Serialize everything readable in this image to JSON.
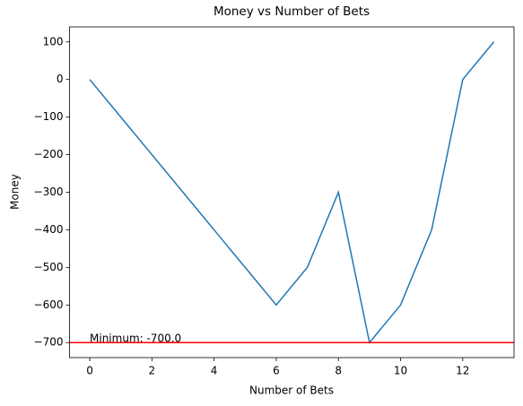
{
  "chart_data": {
    "type": "line",
    "title": "Money vs Number of Bets",
    "x_label": "Number of Bets",
    "y_label": "Money",
    "x": [
      0,
      1,
      2,
      3,
      4,
      5,
      6,
      7,
      8,
      9,
      10,
      11,
      12,
      13
    ],
    "series": [
      {
        "name": "Money",
        "color": "#1f77b4",
        "values": [
          0,
          -100,
          -200,
          -300,
          -400,
          -500,
          -600,
          -500,
          -300,
          -700,
          -600,
          -400,
          0,
          100
        ]
      }
    ],
    "xlim": [
      -0.65,
      13.65
    ],
    "xticks": [
      0,
      2,
      4,
      6,
      8,
      10,
      12
    ],
    "ylim": [
      -740,
      140
    ],
    "yticks": [
      {
        "value": -700,
        "label": "−700"
      },
      {
        "value": -600,
        "label": "−600"
      },
      {
        "value": -500,
        "label": "−500"
      },
      {
        "value": -400,
        "label": "−400"
      },
      {
        "value": -300,
        "label": "−300"
      },
      {
        "value": -200,
        "label": "−200"
      },
      {
        "value": -100,
        "label": "−100"
      },
      0,
      100
    ],
    "hline": {
      "value": -700,
      "color": "red",
      "label": "Minimum: -700.0"
    },
    "grid": false
  }
}
